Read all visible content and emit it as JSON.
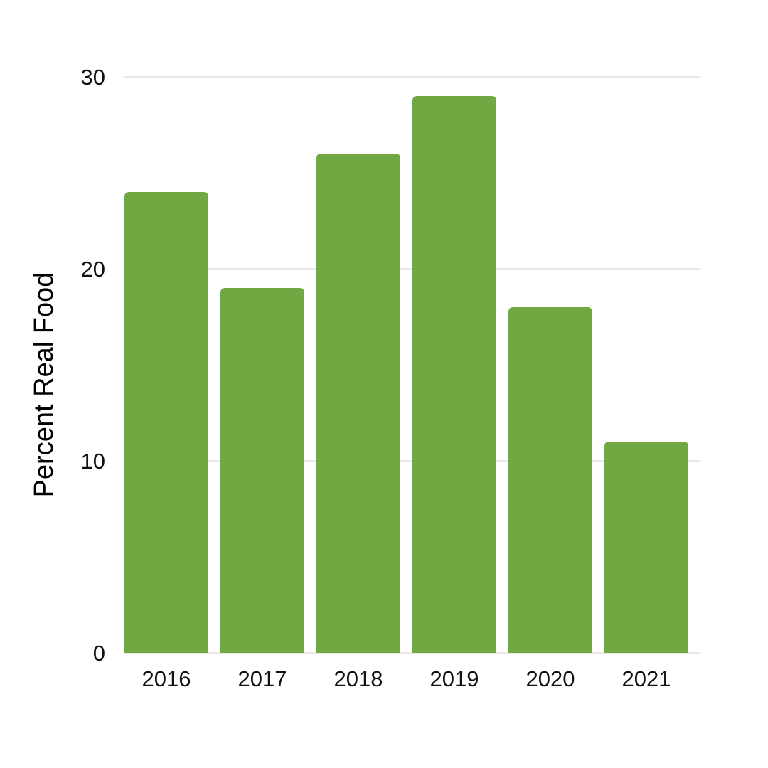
{
  "chart_data": {
    "type": "bar",
    "categories": [
      "2016",
      "2017",
      "2018",
      "2019",
      "2020",
      "2021"
    ],
    "values": [
      24,
      19,
      26,
      29,
      18,
      11
    ],
    "title": "",
    "xlabel": "",
    "ylabel": "Percent Real Food",
    "ylim": [
      0,
      30
    ],
    "yticks": [
      "0",
      "10",
      "20",
      "30"
    ],
    "grid": true,
    "legend": "none",
    "bar_color": "#70a842",
    "gridline_color": "#cfcfcf",
    "text_color": "#111111"
  }
}
